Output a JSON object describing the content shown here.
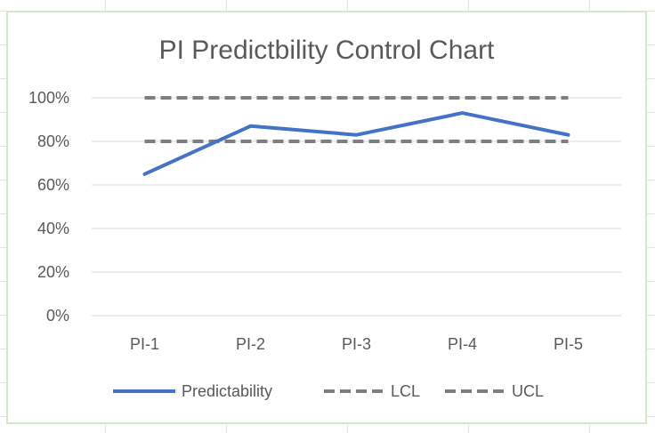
{
  "chart_data": {
    "type": "line",
    "title": "PI Predictbility Control Chart",
    "categories": [
      "PI-1",
      "PI-2",
      "PI-3",
      "PI-4",
      "PI-5"
    ],
    "y_ticks": [
      "0%",
      "20%",
      "40%",
      "60%",
      "80%",
      "100%"
    ],
    "ylim": [
      0,
      1
    ],
    "grid": true,
    "legend_position": "bottom",
    "series": [
      {
        "name": "Predictability",
        "values": [
          0.65,
          0.87,
          0.83,
          0.93,
          0.83
        ],
        "color": "#4472c4",
        "style": "solid"
      },
      {
        "name": "LCL",
        "values": [
          0.8,
          0.8,
          0.8,
          0.8,
          0.8
        ],
        "color": "#7f7f7f",
        "style": "dashed"
      },
      {
        "name": "UCL",
        "values": [
          1.0,
          1.0,
          1.0,
          1.0,
          1.0
        ],
        "color": "#7f7f7f",
        "style": "dashed"
      }
    ]
  }
}
